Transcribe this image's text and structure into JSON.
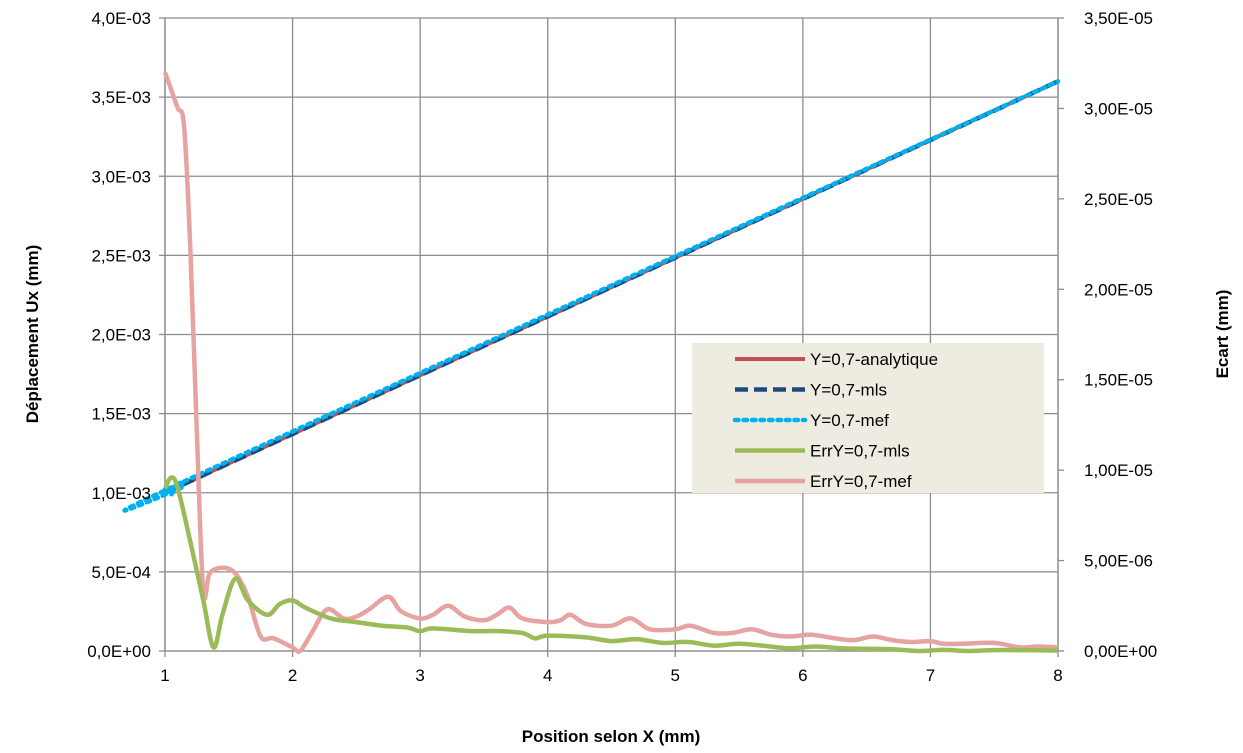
{
  "chart_data": {
    "type": "line",
    "xlabel": "Position selon X (mm)",
    "ylabel": "Déplacement Ux (mm)",
    "y2label": "Ecart (mm)",
    "xlim": [
      1,
      8
    ],
    "ylim": [
      0,
      0.004
    ],
    "y2lim": [
      0,
      3.5e-05
    ],
    "grid": true,
    "legend_position": "right-center",
    "x_ticks": [
      "1",
      "2",
      "3",
      "4",
      "5",
      "6",
      "7",
      "8"
    ],
    "y_ticks": [
      "0,0E+00",
      "5,0E-04",
      "1,0E-03",
      "1,5E-03",
      "2,0E-03",
      "2,5E-03",
      "3,0E-03",
      "3,5E-03",
      "4,0E-03"
    ],
    "y2_ticks": [
      "0,00E+00",
      "5,00E-06",
      "1,00E-05",
      "1,50E-05",
      "2,00E-05",
      "2,50E-05",
      "3,00E-05",
      "3,50E-05"
    ],
    "series": [
      {
        "name": "Y=0,7-analytique",
        "axis": "left",
        "color": "#c0504d",
        "style": "solid",
        "x": [
          1,
          8
        ],
        "y": [
          0.001,
          0.0036
        ]
      },
      {
        "name": "Y=0,7-mls",
        "axis": "left",
        "color": "#1f497d",
        "style": "dashed",
        "x": [
          1,
          8
        ],
        "y": [
          0.001,
          0.0036
        ]
      },
      {
        "name": "Y=0,7-mef",
        "axis": "left",
        "color": "#00b0f0",
        "style": "dotted",
        "x": [
          1,
          1.05,
          1.1,
          1.15,
          1.2,
          8
        ],
        "y": [
          0.00102,
          0.00099,
          0.00107,
          0.00104,
          0.00109,
          0.0036
        ]
      },
      {
        "name": "ErrY=0,7-mls",
        "axis": "right",
        "color": "#9bbb59",
        "style": "solid",
        "x": [
          1,
          1.05,
          1.1,
          1.2,
          1.3,
          1.38,
          1.45,
          1.55,
          1.65,
          1.8,
          1.9,
          2,
          2.1,
          2.3,
          2.5,
          2.7,
          2.9,
          3,
          3.1,
          3.4,
          3.6,
          3.8,
          3.9,
          4,
          4.3,
          4.5,
          4.7,
          4.9,
          5.1,
          5.3,
          5.5,
          5.7,
          5.9,
          6.1,
          6.3,
          6.5,
          6.7,
          6.9,
          7.1,
          7.3,
          7.5,
          7.7,
          8
        ],
        "y": [
          9e-06,
          9.6e-06,
          9e-06,
          6e-06,
          2.8e-06,
          2e-07,
          2e-06,
          4e-06,
          2.8e-06,
          2e-06,
          2.6e-06,
          2.8e-06,
          2.4e-06,
          1.8e-06,
          1.6e-06,
          1.4e-06,
          1.3e-06,
          1.1e-06,
          1.25e-06,
          1.1e-06,
          1.1e-06,
          1e-06,
          7e-07,
          8.5e-07,
          7.5e-07,
          5.5e-07,
          6.5e-07,
          4.5e-07,
          5e-07,
          3e-07,
          4e-07,
          2.8e-07,
          1.5e-07,
          2.5e-07,
          1.5e-07,
          1.2e-07,
          1e-07,
          0.0,
          6e-08,
          0.0,
          5e-08,
          5e-08,
          3e-08
        ]
      },
      {
        "name": "ErrY=0,7-mef",
        "axis": "right",
        "color": "#e6a3a1",
        "style": "solid",
        "x": [
          1,
          1.05,
          1.1,
          1.15,
          1.2,
          1.25,
          1.3,
          1.35,
          1.45,
          1.55,
          1.65,
          1.75,
          1.85,
          2,
          2.06,
          2.15,
          2.27,
          2.4,
          2.5,
          2.6,
          2.75,
          2.85,
          3,
          3.1,
          3.22,
          3.35,
          3.5,
          3.6,
          3.7,
          3.8,
          4,
          4.1,
          4.18,
          4.3,
          4.5,
          4.65,
          4.8,
          5,
          5.12,
          5.3,
          5.45,
          5.6,
          5.75,
          5.9,
          6.07,
          6.25,
          6.4,
          6.55,
          6.7,
          6.85,
          7,
          7.1,
          7.25,
          7.5,
          7.7,
          7.85,
          8
        ],
        "y": [
          3.2e-05,
          3.1e-05,
          3e-05,
          2.9e-05,
          2.2e-05,
          1.2e-05,
          3.3e-06,
          4.3e-06,
          4.6e-06,
          4.3e-06,
          3e-06,
          8e-07,
          7e-07,
          2e-07,
          0.0,
          1e-06,
          2.3e-06,
          1.8e-06,
          1.9e-06,
          2.3e-06,
          3e-06,
          2.2e-06,
          1.8e-06,
          2e-06,
          2.5e-06,
          1.9e-06,
          1.7e-06,
          2e-06,
          2.4e-06,
          1.8e-06,
          1.6e-06,
          1.7e-06,
          2e-06,
          1.5e-06,
          1.4e-06,
          1.8e-06,
          1.2e-06,
          1.2e-06,
          1.4e-06,
          1e-06,
          1e-06,
          1.2e-06,
          9e-07,
          8e-07,
          9e-07,
          7e-07,
          6e-07,
          8e-07,
          6e-07,
          5e-07,
          5.5e-07,
          4e-07,
          4e-07,
          4.5e-07,
          2e-07,
          2.5e-07,
          2e-07
        ]
      }
    ]
  }
}
